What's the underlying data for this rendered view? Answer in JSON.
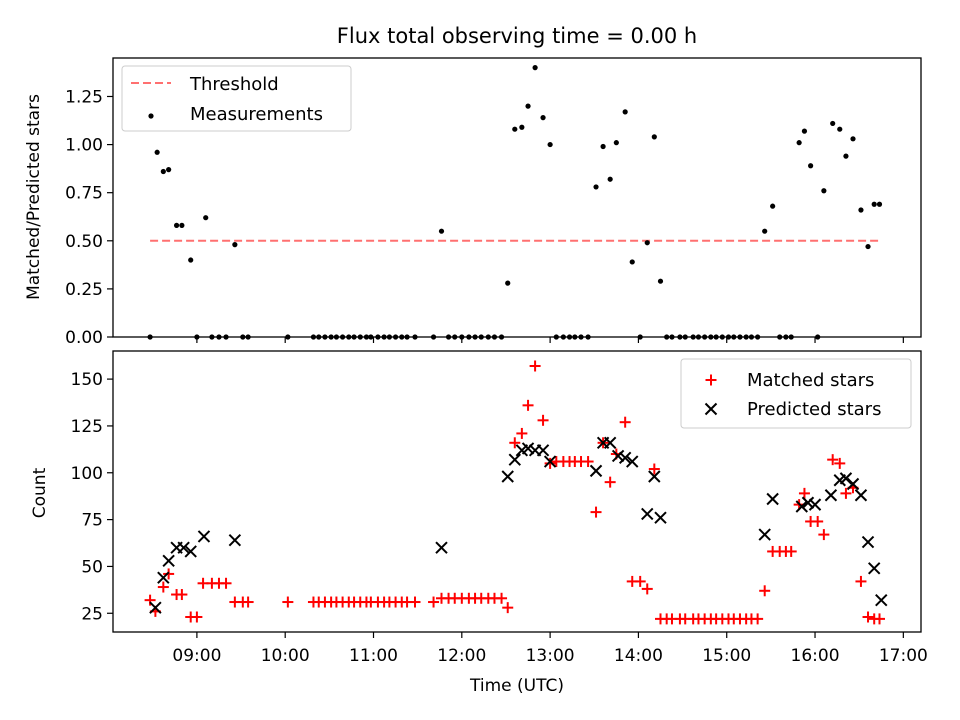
{
  "figure": {
    "title": "Flux total observing time = 0.00 h"
  },
  "chart_data": [
    {
      "type": "scatter",
      "panel": "top",
      "ylabel": "Matched/Predicted stars",
      "ylim": [
        0,
        1.45
      ],
      "yticks": [
        0.0,
        0.25,
        0.5,
        0.75,
        1.0,
        1.25
      ],
      "ytick_labels": [
        "0.00",
        "0.25",
        "0.50",
        "0.75",
        "1.00",
        "1.25"
      ],
      "grid": false,
      "legend_position": "upper-left",
      "threshold": {
        "name": "Threshold",
        "value": 0.5,
        "x_start": 8.47,
        "x_end": 16.72,
        "color": "#ff7070"
      },
      "series": [
        {
          "name": "Measurements",
          "color": "#000000",
          "x": [
            8.47,
            8.55,
            8.62,
            8.68,
            8.77,
            8.83,
            8.93,
            9.0,
            9.1,
            9.17,
            9.25,
            9.33,
            9.43,
            9.52,
            9.58,
            10.03,
            10.32,
            10.38,
            10.45,
            10.52,
            10.58,
            10.65,
            10.72,
            10.78,
            10.85,
            10.92,
            10.97,
            11.05,
            11.12,
            11.18,
            11.25,
            11.32,
            11.38,
            11.47,
            11.68,
            11.77,
            11.85,
            11.92,
            12.0,
            12.08,
            12.15,
            12.22,
            12.3,
            12.37,
            12.45,
            12.52,
            12.6,
            12.68,
            12.75,
            12.83,
            12.92,
            13.0,
            13.07,
            13.15,
            13.22,
            13.28,
            13.35,
            13.43,
            13.52,
            13.6,
            13.68,
            13.75,
            13.85,
            13.93,
            14.02,
            14.1,
            14.18,
            14.25,
            14.32,
            14.38,
            14.47,
            14.53,
            14.62,
            14.68,
            14.75,
            14.82,
            14.88,
            14.95,
            15.02,
            15.08,
            15.15,
            15.22,
            15.28,
            15.35,
            15.43,
            15.52,
            15.6,
            15.67,
            15.73,
            15.82,
            15.88,
            15.95,
            16.03,
            16.1,
            16.2,
            16.28,
            16.35,
            16.43,
            16.52,
            16.6,
            16.67,
            16.73
          ],
          "y": [
            0.0,
            0.96,
            0.86,
            0.87,
            0.58,
            0.58,
            0.4,
            0.0,
            0.62,
            0.0,
            0.0,
            0.0,
            0.48,
            0.0,
            0.0,
            0.0,
            0.0,
            0.0,
            0.0,
            0.0,
            0.0,
            0.0,
            0.0,
            0.0,
            0.0,
            0.0,
            0.0,
            0.0,
            0.0,
            0.0,
            0.0,
            0.0,
            0.0,
            0.0,
            0.0,
            0.55,
            0.0,
            0.0,
            0.0,
            0.0,
            0.0,
            0.0,
            0.0,
            0.0,
            0.0,
            0.28,
            1.08,
            1.09,
            1.2,
            1.4,
            1.14,
            1.0,
            0.0,
            0.0,
            0.0,
            0.0,
            0.0,
            0.0,
            0.78,
            0.99,
            0.82,
            1.01,
            1.17,
            0.39,
            0.0,
            0.49,
            1.04,
            0.29,
            0.0,
            0.0,
            0.0,
            0.0,
            0.0,
            0.0,
            0.0,
            0.0,
            0.0,
            0.0,
            0.0,
            0.0,
            0.0,
            0.0,
            0.0,
            0.0,
            0.55,
            0.68,
            0.0,
            0.0,
            0.0,
            1.01,
            1.07,
            0.89,
            0.0,
            0.76,
            1.11,
            1.08,
            0.94,
            1.03,
            0.66,
            0.47,
            0.69,
            0.69
          ]
        }
      ]
    },
    {
      "type": "scatter",
      "panel": "bottom",
      "xlabel": "Time (UTC)",
      "ylabel": "Count",
      "xlim": [
        8.05,
        17.2
      ],
      "ylim": [
        15,
        165
      ],
      "xticks": [
        9,
        10,
        11,
        12,
        13,
        14,
        15,
        16,
        17
      ],
      "xtick_labels": [
        "09:00",
        "10:00",
        "11:00",
        "12:00",
        "13:00",
        "14:00",
        "15:00",
        "16:00",
        "17:00"
      ],
      "yticks": [
        25,
        50,
        75,
        100,
        125,
        150
      ],
      "ytick_labels": [
        "25",
        "50",
        "75",
        "100",
        "125",
        "150"
      ],
      "grid": false,
      "legend_position": "upper-right",
      "series": [
        {
          "name": "Matched stars",
          "marker": "plus",
          "color": "#ff0000",
          "x": [
            8.47,
            8.53,
            8.62,
            8.68,
            8.77,
            8.83,
            8.93,
            9.0,
            9.07,
            9.17,
            9.25,
            9.33,
            9.43,
            9.52,
            9.58,
            10.03,
            10.32,
            10.38,
            10.45,
            10.52,
            10.58,
            10.65,
            10.72,
            10.78,
            10.85,
            10.92,
            10.97,
            11.05,
            11.12,
            11.18,
            11.25,
            11.32,
            11.38,
            11.47,
            11.68,
            11.77,
            11.85,
            11.92,
            12.0,
            12.08,
            12.15,
            12.22,
            12.3,
            12.37,
            12.45,
            12.52,
            12.6,
            12.68,
            12.75,
            12.83,
            12.92,
            13.0,
            13.07,
            13.15,
            13.22,
            13.28,
            13.35,
            13.43,
            13.52,
            13.6,
            13.68,
            13.75,
            13.85,
            13.93,
            14.02,
            14.1,
            14.18,
            14.25,
            14.32,
            14.38,
            14.47,
            14.53,
            14.62,
            14.68,
            14.75,
            14.82,
            14.88,
            14.95,
            15.02,
            15.08,
            15.15,
            15.22,
            15.28,
            15.35,
            15.43,
            15.52,
            15.6,
            15.67,
            15.73,
            15.82,
            15.88,
            15.95,
            16.03,
            16.1,
            16.2,
            16.28,
            16.35,
            16.43,
            16.52,
            16.6,
            16.67,
            16.73
          ],
          "y": [
            32,
            26,
            39,
            46,
            35,
            35,
            23,
            23,
            41,
            41,
            41,
            41,
            31,
            31,
            31,
            31,
            31,
            31,
            31,
            31,
            31,
            31,
            31,
            31,
            31,
            31,
            31,
            31,
            31,
            31,
            31,
            31,
            31,
            31,
            31,
            33,
            33,
            33,
            33,
            33,
            33,
            33,
            33,
            33,
            33,
            28,
            116,
            121,
            136,
            157,
            128,
            105,
            106,
            106,
            106,
            106,
            106,
            106,
            79,
            116,
            95,
            110,
            127,
            42,
            42,
            38,
            102,
            22,
            22,
            22,
            22,
            22,
            22,
            22,
            22,
            22,
            22,
            22,
            22,
            22,
            22,
            22,
            22,
            22,
            37,
            58,
            58,
            58,
            58,
            83,
            89,
            74,
            74,
            67,
            107,
            105,
            89,
            92,
            42,
            23,
            22,
            22
          ]
        },
        {
          "name": "Predicted stars",
          "marker": "x",
          "color": "#000000",
          "x": [
            8.53,
            8.62,
            8.68,
            8.77,
            8.85,
            8.93,
            9.08,
            9.43,
            11.77,
            12.52,
            12.6,
            12.68,
            12.75,
            12.83,
            12.92,
            13.0,
            13.52,
            13.6,
            13.68,
            13.77,
            13.85,
            13.93,
            14.1,
            14.18,
            14.25,
            15.43,
            15.52,
            15.85,
            15.92,
            16.0,
            16.18,
            16.28,
            16.35,
            16.43,
            16.52,
            16.6,
            16.67,
            16.75
          ],
          "y": [
            28,
            44,
            53,
            60,
            60,
            58,
            66,
            64,
            60,
            98,
            107,
            112,
            113,
            112,
            112,
            106,
            101,
            116,
            116,
            109,
            108,
            106,
            78,
            98,
            76,
            67,
            86,
            82,
            84,
            83,
            88,
            96,
            97,
            94,
            88,
            63,
            49,
            32
          ]
        }
      ]
    }
  ]
}
